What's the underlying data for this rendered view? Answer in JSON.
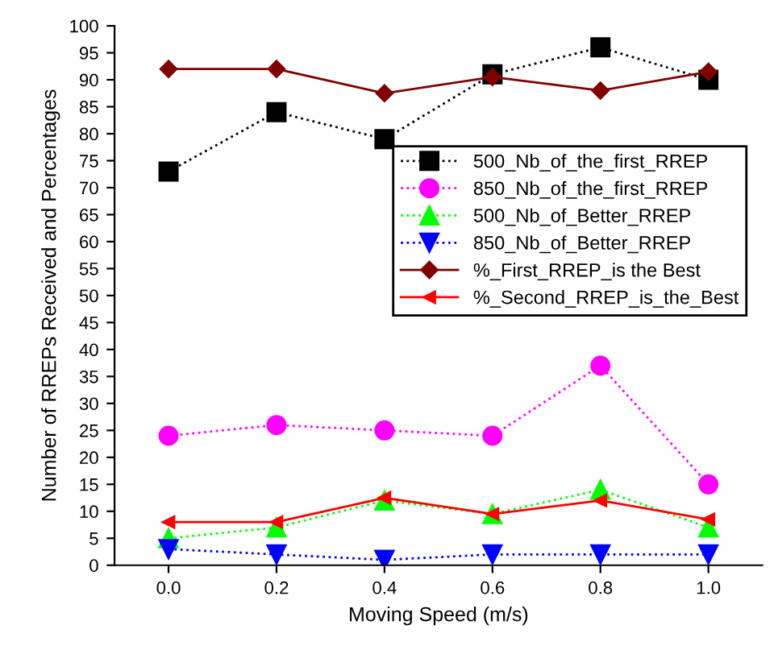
{
  "chart_data": {
    "type": "line",
    "xlabel": "Moving Speed (m/s)",
    "ylabel": "Number of RREPs Received and Percentages",
    "x": [
      0.0,
      0.2,
      0.4,
      0.6,
      0.8,
      1.0
    ],
    "xlim": [
      -0.1,
      1.1
    ],
    "xticks": [
      {
        "value": 0.0,
        "label": "0.0"
      },
      {
        "value": 0.2,
        "label": "0.2"
      },
      {
        "value": 0.4,
        "label": "0.4"
      },
      {
        "value": 0.6,
        "label": "0.6"
      },
      {
        "value": 0.8,
        "label": "0.8"
      },
      {
        "value": 1.0,
        "label": "1.0"
      }
    ],
    "ylim": [
      0,
      100
    ],
    "yticks": [
      0,
      5,
      10,
      15,
      20,
      25,
      30,
      35,
      40,
      45,
      50,
      55,
      60,
      65,
      70,
      75,
      80,
      85,
      90,
      95,
      100
    ],
    "grid": false,
    "legend": "right",
    "series": [
      {
        "name": "500_Nb_of_the_first_RREP",
        "color": "#000000",
        "marker": "square",
        "line_style": "dotted",
        "values": [
          73,
          84,
          79,
          91,
          96,
          90
        ]
      },
      {
        "name": "850_Nb_of_the_first_RREP",
        "color": "#ff00ff",
        "marker": "circle",
        "line_style": "dotted",
        "values": [
          24,
          26,
          25,
          24,
          37,
          15
        ]
      },
      {
        "name": "500_Nb_of_Better_RREP",
        "color": "#00ff00",
        "marker": "triangle",
        "line_style": "dotted",
        "values": [
          5,
          7,
          12,
          9.5,
          14,
          7
        ]
      },
      {
        "name": "850_Nb_of_Better_RREP",
        "color": "#0000ff",
        "marker": "triangle_down",
        "line_style": "dotted",
        "values": [
          3,
          2,
          1,
          2,
          2,
          2
        ]
      },
      {
        "name": "%_First_RREP_is the Best",
        "color": "#800000",
        "marker": "diamond",
        "line_style": "solid",
        "values": [
          92,
          92,
          87.5,
          90.5,
          88,
          91.5
        ]
      },
      {
        "name": "%_Second_RREP_is_the_Best",
        "color": "#ff0000",
        "marker": "triangle_left",
        "line_style": "solid",
        "values": [
          8,
          8,
          12.5,
          9.5,
          12,
          8.5
        ]
      }
    ]
  }
}
